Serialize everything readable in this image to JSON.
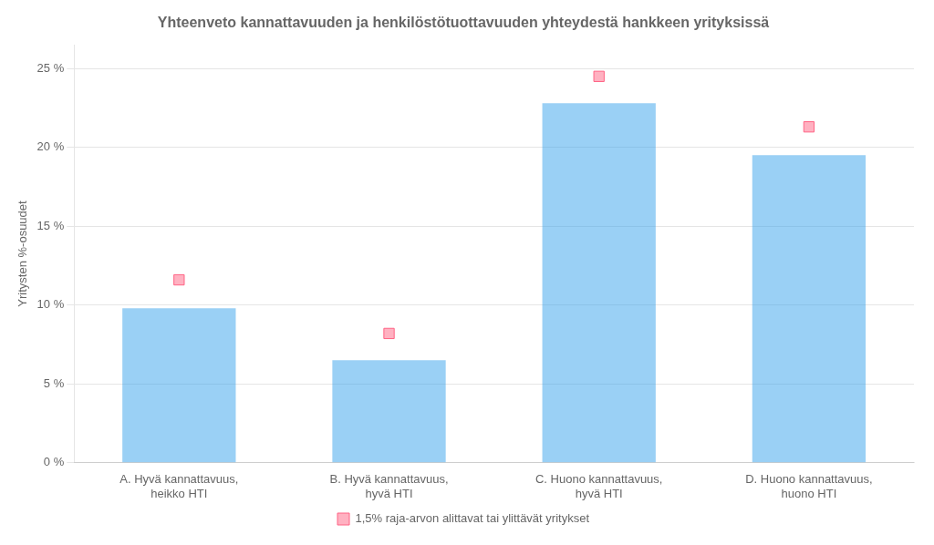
{
  "chart_data": {
    "type": "bar",
    "title": "Yhteenveto kannattavuuden ja henkilöstötuottavuuden yhteydestä hankkeen yrityksissä",
    "ylabel": "Yritysten %-osuudet",
    "categories": [
      "A. Hyvä kannattavuus,\nheikko HTI",
      "B. Hyvä kannattavuus,\nhyvä HTI",
      "C. Huono kannattavuus,\nhyvä HTI",
      "D. Huono kannattavuus,\nhuono HTI"
    ],
    "series": [
      {
        "type": "bar",
        "values": [
          9.8,
          6.5,
          22.8,
          19.5
        ]
      },
      {
        "type": "scatter",
        "marker": "square",
        "name": "1,5% raja-arvon alittavat tai ylittävät yritykset",
        "values": [
          11.6,
          8.2,
          24.5,
          21.3
        ]
      }
    ],
    "ylim": [
      0,
      26.5
    ],
    "yticks": [
      {
        "value": 0,
        "label": "0 %"
      },
      {
        "value": 5,
        "label": "5 %"
      },
      {
        "value": 10,
        "label": "10 %"
      },
      {
        "value": 15,
        "label": "15 %"
      },
      {
        "value": 20,
        "label": "20 %"
      },
      {
        "value": 25,
        "label": "25 %"
      }
    ],
    "grid": true,
    "legend": "bottom"
  }
}
